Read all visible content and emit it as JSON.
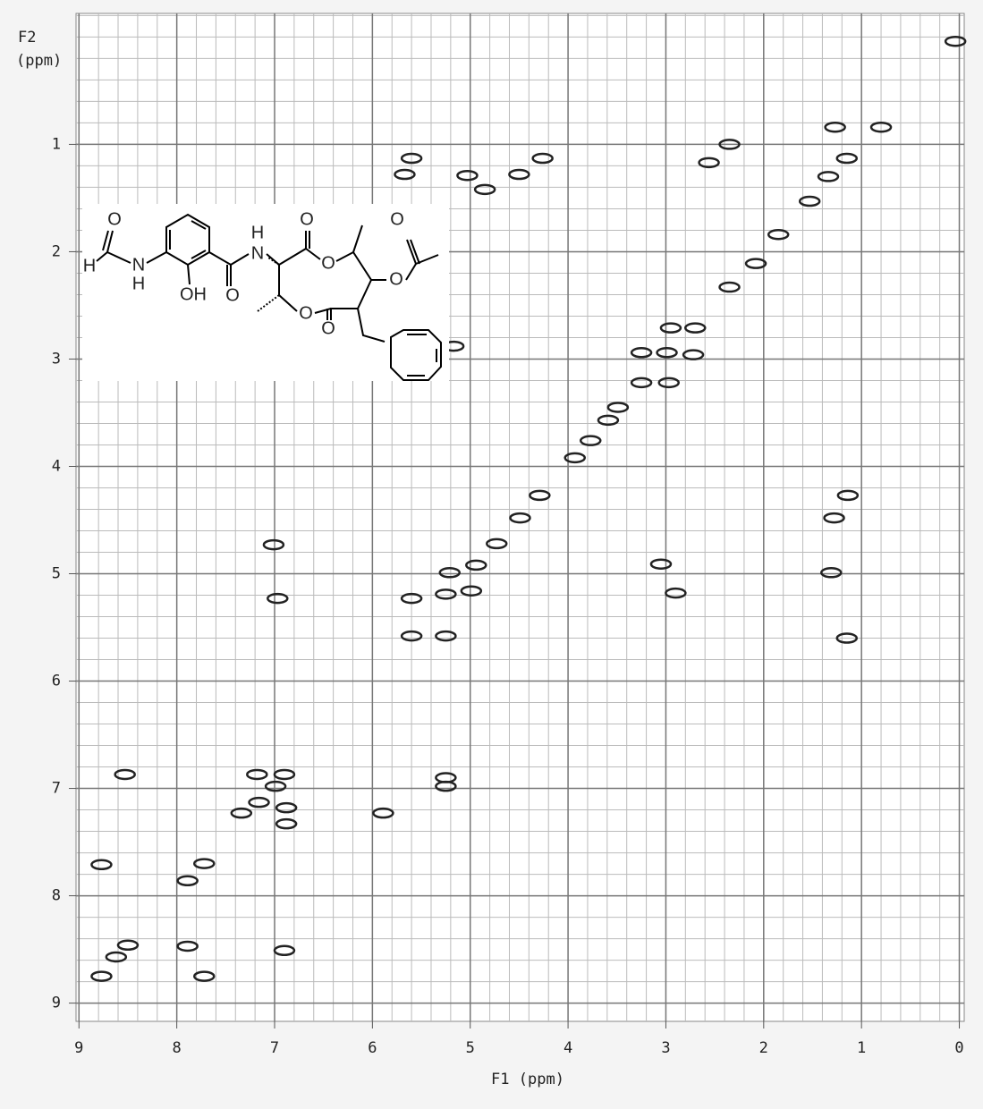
{
  "chart_data": {
    "type": "scatter",
    "x_label": "F1 (ppm)",
    "y_label": [
      "F2",
      "(ppm)"
    ],
    "xlim": [
      9.03,
      -0.05
    ],
    "ylim": [
      -0.22,
      9.17
    ],
    "xticks": [
      9,
      8,
      7,
      6,
      5,
      4,
      3,
      2,
      1,
      0
    ],
    "yticks": [
      1,
      2,
      3,
      4,
      5,
      6,
      7,
      8,
      9
    ],
    "grid": true,
    "color": "#222222",
    "x": [
      0.04,
      0.8,
      1.27,
      1.15,
      1.34,
      1.53,
      1.85,
      2.08,
      2.35,
      2.56,
      2.35,
      2.95,
      2.7,
      3.25,
      2.99,
      2.72,
      3.25,
      2.97,
      3.49,
      3.59,
      3.77,
      3.93,
      4.29,
      4.49,
      4.73,
      4.26,
      4.5,
      4.85,
      5.03,
      5.6,
      5.67,
      5.17,
      4.94,
      5.21,
      4.99,
      5.25,
      5.6,
      5.6,
      5.25,
      5.25,
      5.25,
      7.01,
      6.97,
      3.05,
      2.9,
      1.31,
      1.15,
      1.14,
      1.28,
      8.53,
      7.18,
      6.9,
      6.99,
      7.16,
      7.34,
      6.88,
      6.88,
      7.89,
      7.72,
      8.77,
      8.5,
      6.9,
      7.89,
      8.62,
      8.77,
      7.72,
      5.89
    ],
    "values": [
      0.04,
      0.84,
      0.84,
      1.13,
      1.3,
      1.53,
      1.84,
      2.11,
      1.0,
      1.17,
      2.33,
      2.71,
      2.71,
      2.94,
      2.94,
      2.96,
      3.22,
      3.22,
      3.45,
      3.57,
      3.76,
      3.92,
      4.27,
      4.48,
      4.72,
      1.13,
      1.28,
      1.42,
      1.29,
      1.13,
      1.28,
      2.88,
      4.92,
      4.99,
      5.16,
      5.19,
      5.23,
      5.58,
      5.58,
      6.9,
      6.98,
      4.73,
      5.23,
      4.91,
      5.18,
      4.99,
      5.6,
      4.27,
      4.48,
      6.87,
      6.87,
      6.87,
      6.98,
      7.13,
      7.23,
      7.18,
      7.33,
      7.86,
      7.7,
      7.71,
      8.46,
      8.51,
      8.47,
      8.57,
      8.75,
      8.75,
      7.23
    ]
  },
  "structure": {
    "atoms": [
      "O",
      "H",
      "N",
      "H",
      "OH",
      "O",
      "N",
      "H",
      "O",
      "O",
      "O",
      "O",
      "O",
      "O"
    ]
  }
}
